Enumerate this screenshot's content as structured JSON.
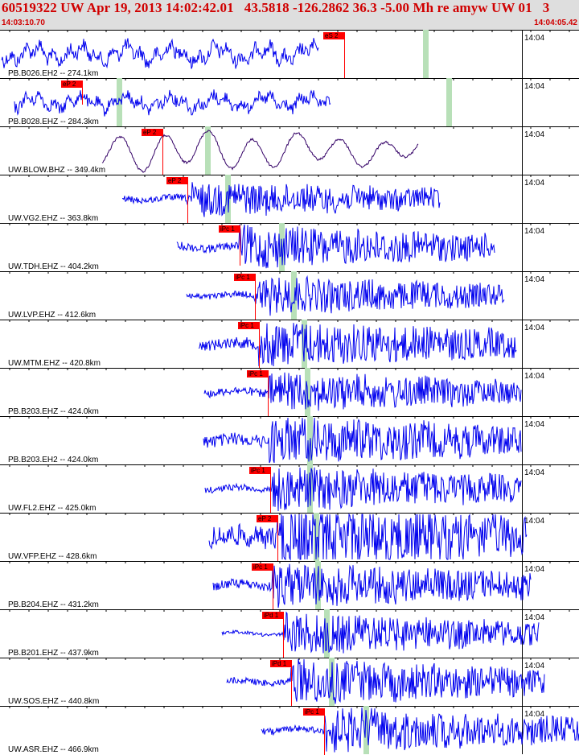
{
  "header": {
    "title": "60519322 UW Apr 19, 2013 14:02:42.01   43.5818 -126.2862 36.3 -5.00 Mh re amyw UW 01   3",
    "time_start": "14:03:10.70",
    "time_end": "14:04:05.42"
  },
  "colors": {
    "header_bg": "#dedede",
    "header_text": "#d00000",
    "trace": "#0000ee",
    "trace_alt": "#330066",
    "pick": "#ff0000",
    "phase_marker": "#b8e0b8"
  },
  "channels": [
    {
      "label": "PB.B026.EH2 -- 274.1km",
      "time": "14:04",
      "pick": "eS 2",
      "color": "#0000ee"
    },
    {
      "label": "PB.B028.EHZ -- 284.3km",
      "time": "14:04",
      "pick": "eP 2",
      "color": "#0000ee"
    },
    {
      "label": "UW.BLOW.BHZ -- 349.4km",
      "time": "14:04",
      "pick": "eP 2",
      "color": "#330066"
    },
    {
      "label": "UW.VG2.EHZ -- 363.8km",
      "time": "14:04",
      "pick": "eP 2",
      "color": "#0000ee"
    },
    {
      "label": "UW.TDH.EHZ -- 404.2km",
      "time": "14:04",
      "pick": "iPc 1",
      "color": "#0000ee"
    },
    {
      "label": "UW.LVP.EHZ -- 412.6km",
      "time": "14:04",
      "pick": "iPc 1",
      "color": "#0000ee"
    },
    {
      "label": "UW.MTM.EHZ -- 420.8km",
      "time": "14:04",
      "pick": "iPc 1",
      "color": "#0000ee"
    },
    {
      "label": "PB.B203.EHZ -- 424.0km",
      "time": "14:04",
      "pick": "iPc 1",
      "color": "#0000ee"
    },
    {
      "label": "PB.B203.EH2 -- 424.0km",
      "time": "14:04",
      "pick": "",
      "color": "#0000ee"
    },
    {
      "label": "UW.FL2.EHZ -- 425.0km",
      "time": "14:04",
      "pick": "iPc 1",
      "color": "#0000ee"
    },
    {
      "label": "UW.VFP.EHZ -- 428.6km",
      "time": "14:04",
      "pick": "eP 2",
      "color": "#0000ee"
    },
    {
      "label": "PB.B204.EHZ -- 431.2km",
      "time": "14:04",
      "pick": "iPc 1",
      "color": "#0000ee"
    },
    {
      "label": "PB.B201.EHZ -- 437.9km",
      "time": "14:04",
      "pick": "iPd 1",
      "color": "#0000ee"
    },
    {
      "label": "UW.SOS.EHZ -- 440.8km",
      "time": "14:04",
      "pick": "iPd 1",
      "color": "#0000ee"
    },
    {
      "label": "UW.ASR.EHZ -- 466.9km",
      "time": "14:04",
      "pick": "iPc 1",
      "color": "#0000ee"
    }
  ]
}
